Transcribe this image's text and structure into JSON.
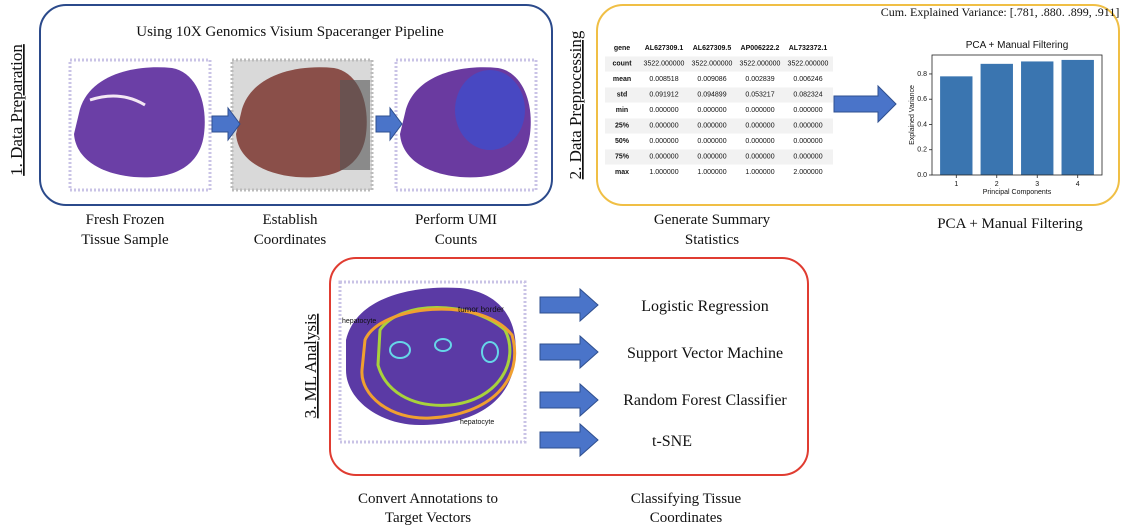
{
  "section1": {
    "label": "1. Data Preparation",
    "title": "Using 10X Genomics Visium Spaceranger Pipeline",
    "captions": [
      [
        "Fresh Frozen",
        "Tissue Sample"
      ],
      [
        "Establish",
        "Coordinates"
      ],
      [
        "Perform UMI",
        "Counts"
      ]
    ]
  },
  "section2": {
    "label": "2. Data Preprocessing",
    "table": {
      "header": [
        "gene",
        "AL627309.1",
        "AL627309.5",
        "AP006222.2",
        "AL732372.1"
      ],
      "rows": [
        [
          "count",
          "3522.000000",
          "3522.000000",
          "3522.000000",
          "3522.000000"
        ],
        [
          "mean",
          "0.008518",
          "0.009086",
          "0.002839",
          "0.006246"
        ],
        [
          "std",
          "0.091912",
          "0.094899",
          "0.053217",
          "0.082324"
        ],
        [
          "min",
          "0.000000",
          "0.000000",
          "0.000000",
          "0.000000"
        ],
        [
          "25%",
          "0.000000",
          "0.000000",
          "0.000000",
          "0.000000"
        ],
        [
          "50%",
          "0.000000",
          "0.000000",
          "0.000000",
          "0.000000"
        ],
        [
          "75%",
          "0.000000",
          "0.000000",
          "0.000000",
          "0.000000"
        ],
        [
          "max",
          "1.000000",
          "1.000000",
          "1.000000",
          "2.000000"
        ]
      ]
    },
    "captions": [
      [
        "Generate Summary",
        "Statistics"
      ],
      [
        "PCA + Manual Filtering"
      ]
    ],
    "pca_chart": {
      "type": "bar",
      "annotation": "Cum. Explained Variance: [.781, .880. .899, .911]",
      "title": "PCA + Manual Filtering",
      "x_label": "Principal Components",
      "y_label": "Explained Variance",
      "x": [
        1,
        2,
        3,
        4
      ],
      "values": [
        0.781,
        0.88,
        0.899,
        0.911
      ],
      "color": "#3a75b0",
      "xlim": [
        0.4,
        4.6
      ],
      "ylim": [
        0,
        0.95
      ],
      "xticks": [
        1,
        2,
        3,
        4
      ],
      "yticks": [
        {
          "value": 0,
          "label": "0.0"
        },
        0.2,
        0.4,
        0.6,
        0.8
      ]
    }
  },
  "section3": {
    "label": "3. ML Analysis",
    "image_labels": [
      "tumor border",
      "hepatocyte",
      "hepatocyte"
    ],
    "methods": [
      "Logistic Regression",
      "Support Vector Machine",
      "Random Forest Classifier",
      "t-SNE"
    ],
    "captions": [
      [
        "Convert Annotations to",
        "Target Vectors"
      ],
      [
        "Classifying Tissue",
        "Coordinates"
      ]
    ]
  }
}
